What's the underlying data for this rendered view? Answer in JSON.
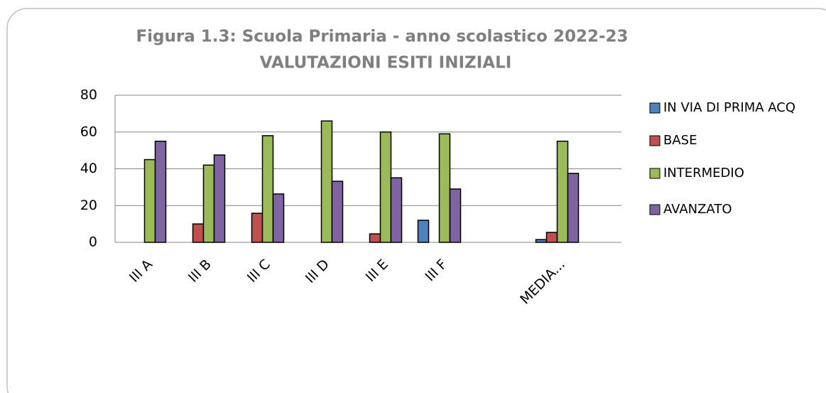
{
  "chart_data": {
    "type": "bar",
    "title": [
      "Figura 1.3: Scuola Primaria - anno scolastico 2022-23",
      "VALUTAZIONI ESITI INIZIALI"
    ],
    "categories": [
      "III A",
      "III B",
      "III C",
      "III D",
      "III E",
      "III F",
      null,
      "MEDIA..."
    ],
    "series": [
      {
        "name": "IN VIA DI PRIMA ACQ",
        "color": "#4f81bd",
        "values": [
          0,
          0,
          0,
          0,
          0,
          12,
          null,
          1.5
        ]
      },
      {
        "name": "BASE",
        "color": "#c0504d",
        "values": [
          0,
          10,
          15.8,
          0,
          4.6,
          0,
          null,
          5.4
        ]
      },
      {
        "name": "INTERMEDIO",
        "color": "#9bbb59",
        "values": [
          45,
          42,
          58,
          66,
          60,
          59,
          null,
          55
        ]
      },
      {
        "name": "AVANZATO",
        "color": "#8064a2",
        "values": [
          55,
          47.5,
          26.3,
          33.2,
          35.1,
          29,
          null,
          37.5
        ]
      }
    ],
    "ylim": [
      0,
      80
    ],
    "yticks": [
      0,
      20,
      40,
      60,
      80
    ],
    "grid": true,
    "legend": "right"
  }
}
